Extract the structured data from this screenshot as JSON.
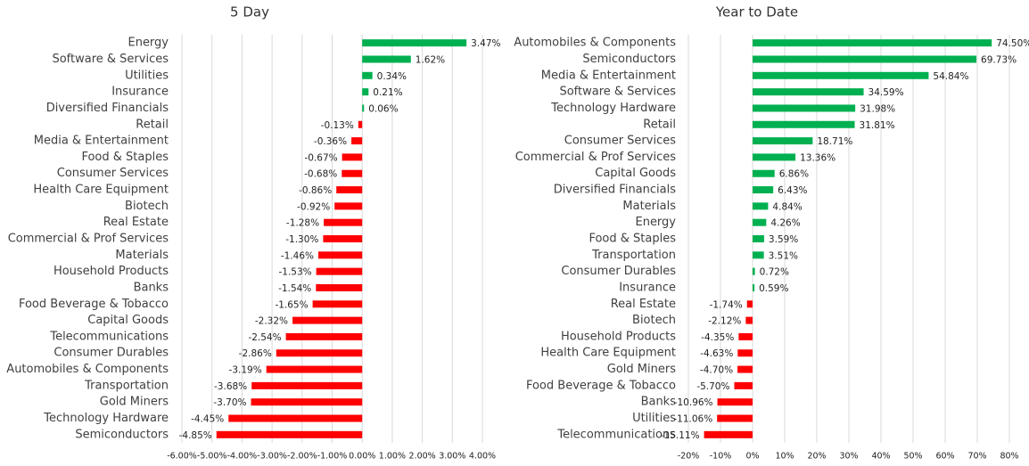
{
  "chart_data": [
    {
      "type": "bar",
      "orientation": "horizontal",
      "title": "5 Day",
      "categories": [
        "Energy",
        "Software & Services",
        "Utilities",
        "Insurance",
        "Diversified Financials",
        "Retail",
        "Media & Entertainment",
        "Food & Staples",
        "Consumer Services",
        "Health Care Equipment",
        "Biotech",
        "Real Estate",
        "Commercial & Prof Services",
        "Materials",
        "Household Products",
        "Banks",
        "Food Beverage & Tobacco",
        "Capital Goods",
        "Telecommunications",
        "Consumer Durables",
        "Automobiles & Components",
        "Transportation",
        "Gold Miners",
        "Technology Hardware",
        "Semiconductors"
      ],
      "values": [
        3.47,
        1.62,
        0.34,
        0.21,
        0.06,
        -0.13,
        -0.36,
        -0.67,
        -0.68,
        -0.86,
        -0.92,
        -1.28,
        -1.3,
        -1.46,
        -1.53,
        -1.54,
        -1.65,
        -2.32,
        -2.54,
        -2.86,
        -3.19,
        -3.68,
        -3.7,
        -4.45,
        -4.85
      ],
      "value_labels": [
        "3.47%",
        "1.62%",
        "0.34%",
        "0.21%",
        "0.06%",
        "-0.13%",
        "-0.36%",
        "-0.67%",
        "-0.68%",
        "-0.86%",
        "-0.92%",
        "-1.28%",
        "-1.30%",
        "-1.46%",
        "-1.53%",
        "-1.54%",
        "-1.65%",
        "-2.32%",
        "-2.54%",
        "-2.86%",
        "-3.19%",
        "-3.68%",
        "-3.70%",
        "-4.45%",
        "-4.85%"
      ],
      "positive_color": "#00b050",
      "negative_color": "#ff0000",
      "xlim": [
        -6,
        4
      ],
      "xticks": [
        {
          "value": -6,
          "label": "-6.00%"
        },
        {
          "value": -5,
          "label": "-5.00%"
        },
        {
          "value": -4,
          "label": "-4.00%"
        },
        {
          "value": -3,
          "label": "-3.00%"
        },
        {
          "value": -2,
          "label": "-2.00%"
        },
        {
          "value": -1,
          "label": "-1.00%"
        },
        {
          "value": 0,
          "label": "0.00%"
        },
        {
          "value": 1,
          "label": "1.00%"
        },
        {
          "value": 2,
          "label": "2.00%"
        },
        {
          "value": 3,
          "label": "3.00%"
        },
        {
          "value": 4,
          "label": "4.00%"
        }
      ],
      "grid": true
    },
    {
      "type": "bar",
      "orientation": "horizontal",
      "title": "Year to Date",
      "categories": [
        "Automobiles & Components",
        "Semiconductors",
        "Media & Entertainment",
        "Software & Services",
        "Technology Hardware",
        "Retail",
        "Consumer Services",
        "Commercial & Prof Services",
        "Capital Goods",
        "Diversified Financials",
        "Materials",
        "Energy",
        "Food & Staples",
        "Transportation",
        "Consumer Durables",
        "Insurance",
        "Real Estate",
        "Biotech",
        "Household Products",
        "Health Care Equipment",
        "Gold Miners",
        "Food Beverage & Tobacco",
        "Banks",
        "Utilities",
        "Telecommunications"
      ],
      "values": [
        74.5,
        69.73,
        54.84,
        34.59,
        31.98,
        31.81,
        18.71,
        13.36,
        6.86,
        6.43,
        4.84,
        4.26,
        3.59,
        3.51,
        0.72,
        0.59,
        -1.74,
        -2.12,
        -4.35,
        -4.63,
        -4.7,
        -5.7,
        -10.96,
        -11.06,
        -15.11
      ],
      "value_labels": [
        "74.50%",
        "69.73%",
        "54.84%",
        "34.59%",
        "31.98%",
        "31.81%",
        "18.71%",
        "13.36%",
        "6.86%",
        "6.43%",
        "4.84%",
        "4.26%",
        "3.59%",
        "3.51%",
        "0.72%",
        "0.59%",
        "-1.74%",
        "-2.12%",
        "-4.35%",
        "-4.63%",
        "-4.70%",
        "-5.70%",
        "-10.96%",
        "-11.06%",
        "-15.11%"
      ],
      "positive_color": "#00b050",
      "negative_color": "#ff0000",
      "xlim": [
        -20,
        80
      ],
      "xticks": [
        {
          "value": -20,
          "label": "-20%"
        },
        {
          "value": -10,
          "label": "-10%"
        },
        {
          "value": 0,
          "label": "0%"
        },
        {
          "value": 10,
          "label": "10%"
        },
        {
          "value": 20,
          "label": "20%"
        },
        {
          "value": 30,
          "label": "30%"
        },
        {
          "value": 40,
          "label": "40%"
        },
        {
          "value": 50,
          "label": "50%"
        },
        {
          "value": 60,
          "label": "60%"
        },
        {
          "value": 70,
          "label": "70%"
        },
        {
          "value": 80,
          "label": "80%"
        }
      ],
      "grid": true
    }
  ]
}
